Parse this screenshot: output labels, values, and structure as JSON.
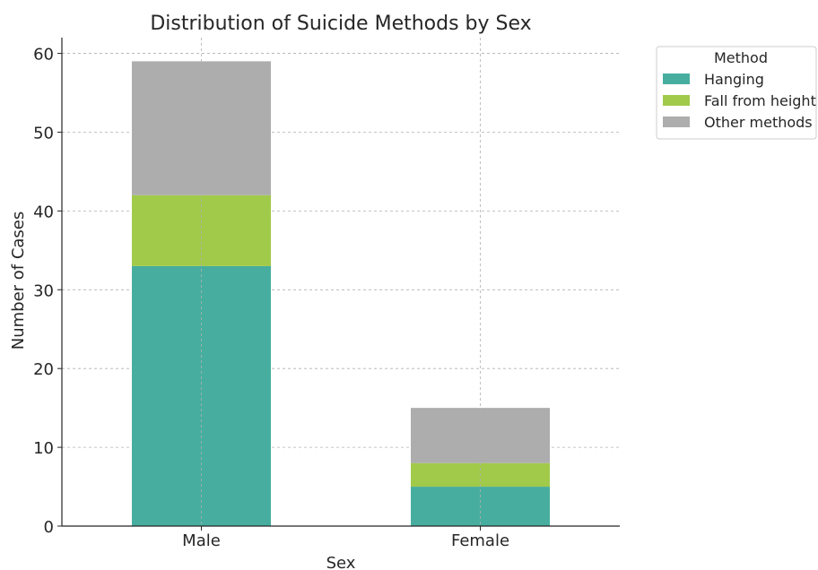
{
  "chart_data": {
    "type": "bar",
    "stacked": true,
    "title": "Distribution of Suicide Methods by Sex",
    "xlabel": "Sex",
    "ylabel": "Number of Cases",
    "categories": [
      "Male",
      "Female"
    ],
    "series": [
      {
        "name": "Hanging",
        "values": [
          33,
          5
        ],
        "color": "#47ae9f"
      },
      {
        "name": "Fall from height",
        "values": [
          9,
          3
        ],
        "color": "#a1ca4b"
      },
      {
        "name": "Other methods",
        "values": [
          17,
          7
        ],
        "color": "#adadad"
      }
    ],
    "ylim": [
      0,
      62
    ],
    "yticks": [
      0,
      10,
      20,
      30,
      40,
      50,
      60
    ],
    "legend": {
      "title": "Method",
      "placement": "outside top-right"
    },
    "grid": true
  }
}
